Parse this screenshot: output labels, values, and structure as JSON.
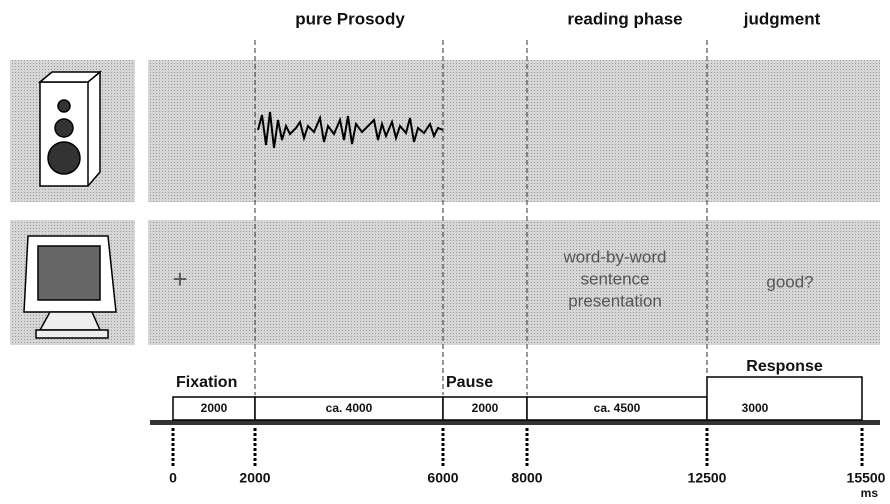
{
  "phases": [
    "pure Prosody",
    "reading phase",
    "judgment"
  ],
  "screen": {
    "fixation": "+",
    "sentence": [
      "word-by-word",
      "sentence",
      "presentation"
    ],
    "question": "good?"
  },
  "timeline": {
    "segments": [
      {
        "label": "Fixation",
        "duration": "2000"
      },
      {
        "duration": "ca. 4000"
      },
      {
        "label": "Pause",
        "duration": "2000"
      },
      {
        "duration": "ca. 4500"
      },
      {
        "label": "Response",
        "duration": "3000"
      }
    ],
    "ticks": [
      0,
      2000,
      6000,
      8000,
      12500,
      15500
    ],
    "unit": "ms"
  }
}
